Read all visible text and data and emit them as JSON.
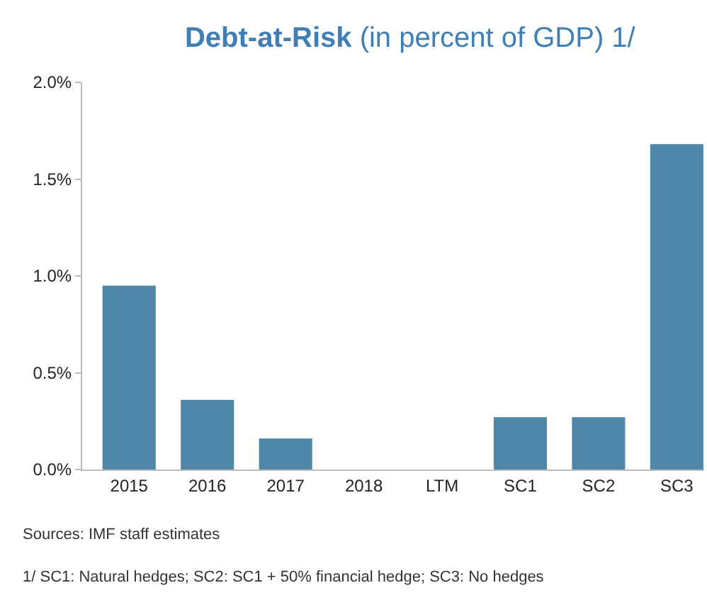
{
  "chart_data": {
    "type": "bar",
    "title": "Debt-at-Risk",
    "subtitle": "(in percent of GDP) 1/",
    "categories": [
      "2015",
      "2016",
      "2017",
      "2018",
      "LTM",
      "SC1",
      "SC2",
      "SC3"
    ],
    "values": [
      0.95,
      0.36,
      0.16,
      0,
      0,
      0.27,
      0.27,
      1.68
    ],
    "color": "#4f87a9",
    "ylim": [
      0,
      2
    ],
    "yticks": [
      {
        "value": 0,
        "label": "0.0%"
      },
      {
        "value": 0.5,
        "label": "0.5%"
      },
      {
        "value": 1,
        "label": "1.0%"
      },
      {
        "value": 1.5,
        "label": "1.5%"
      },
      {
        "value": 2,
        "label": "2.0%"
      }
    ],
    "grid": false,
    "annotations": [
      "Sources: IMF staff estimates",
      "1/ SC1: Natural hedges; SC2: SC1 + 50% financial hedge; SC3: No hedges"
    ]
  }
}
